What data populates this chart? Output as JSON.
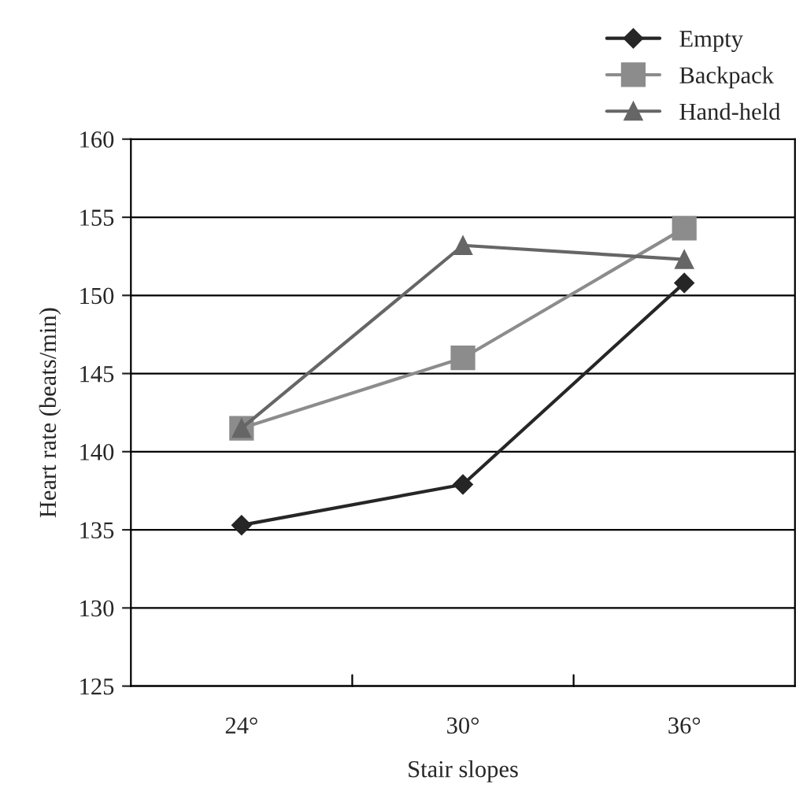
{
  "chart_data": {
    "type": "line",
    "xlabel": "Stair slopes",
    "ylabel": "Heart rate (beats/min)",
    "categories": [
      "24°",
      "30°",
      "36°"
    ],
    "series": [
      {
        "name": "Empty",
        "color": "#262626",
        "marker": "diamond",
        "values": [
          135.3,
          137.9,
          150.8
        ]
      },
      {
        "name": "Backpack",
        "color": "#8c8c8c",
        "marker": "square",
        "values": [
          141.5,
          146.0,
          154.3
        ]
      },
      {
        "name": "Hand-held",
        "color": "#666666",
        "marker": "triangle",
        "values": [
          141.5,
          153.2,
          152.3
        ]
      }
    ],
    "ylim": [
      125,
      160
    ],
    "yticks": [
      125,
      130,
      135,
      140,
      145,
      150,
      155,
      160
    ],
    "grid": "y",
    "legend": "top right",
    "line_style": "solid"
  }
}
